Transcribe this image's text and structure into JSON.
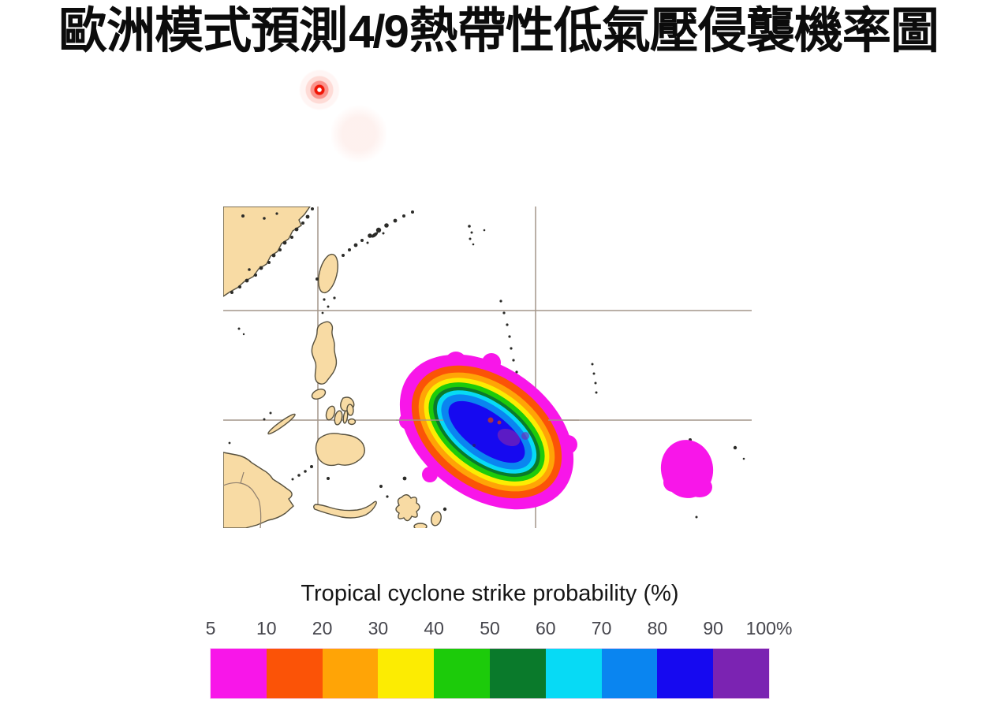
{
  "title": {
    "prefix": "歐洲模式預測",
    "date": "4/9",
    "suffix": "熱帶性低氣壓侵襲機率圖"
  },
  "pointer": {
    "color": "#f01404"
  },
  "map": {
    "land_color": "#f8dba4",
    "coast_color": "#56503e",
    "grid_color": "#a3958a",
    "internal_border_color": "#8f7f6e",
    "spot_red_color": "#c03a28"
  },
  "legend": {
    "title": "Tropical cyclone strike probability (%)",
    "ticks": [
      "5",
      "10",
      "20",
      "30",
      "40",
      "50",
      "60",
      "70",
      "80",
      "90",
      "100%"
    ],
    "blocks": [
      "#f816e9",
      "#fb5307",
      "#ffa406",
      "#fcec02",
      "#1ccb0a",
      "#0a7a2b",
      "#07daf5",
      "#0a85f0",
      "#1609f0",
      "#7b23b2"
    ]
  }
}
